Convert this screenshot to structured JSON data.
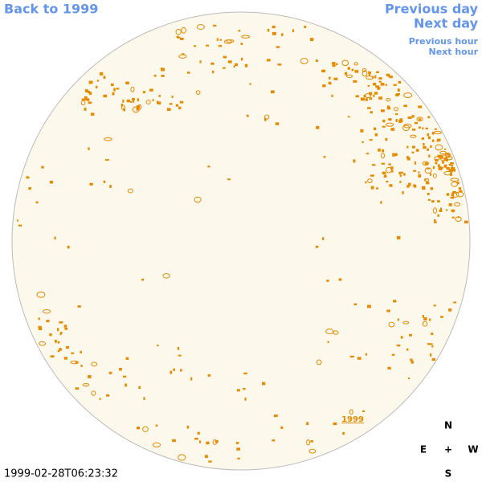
{
  "header": {
    "back": "Back to 1999",
    "previous_day": "Previous day",
    "next_day": "Next day",
    "previous_hour": "Previous hour",
    "next_hour": "Next hour"
  },
  "map": {
    "year_link": "1999",
    "timestamp": "1999-02-28T06:23:32"
  },
  "compass": {
    "north": "N",
    "east": "E",
    "center": "+",
    "west": "W",
    "south": "S"
  }
}
